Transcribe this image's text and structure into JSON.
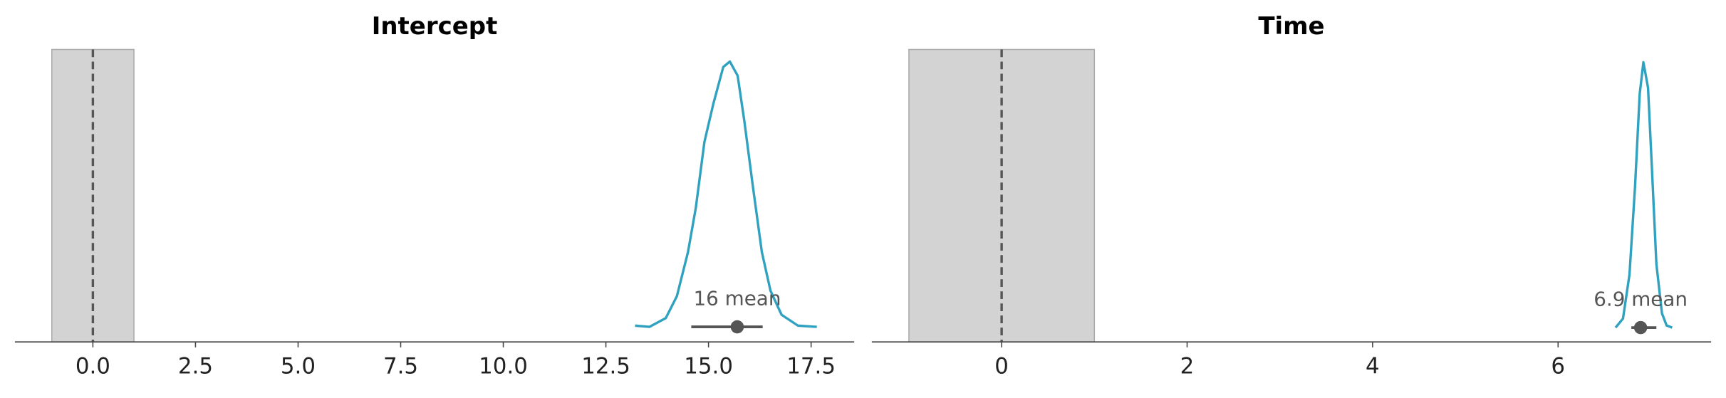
{
  "chart_data": [
    {
      "type": "density",
      "title": "Intercept",
      "x": [
        13.21,
        13.56,
        13.96,
        14.23,
        14.5,
        14.69,
        14.9,
        15.12,
        15.36,
        15.52,
        15.71,
        15.87,
        16.08,
        16.3,
        16.51,
        16.78,
        17.18,
        17.64
      ],
      "density": [
        0.004,
        0,
        0.029,
        0.102,
        0.248,
        0.394,
        0.613,
        0.741,
        0.862,
        0.88,
        0.833,
        0.686,
        0.467,
        0.248,
        0.12,
        0.04,
        0.004,
        0
      ],
      "color": "#30a2c0",
      "point_estimate": 15.7,
      "point_estimate_label": "16 mean",
      "hdi": [
        14.58,
        16.32
      ],
      "rope": [
        -1,
        1
      ],
      "rope_color": "#d3d3d3",
      "ref_val": 0,
      "xlim": [
        -1.9,
        18.55
      ],
      "ylim": [
        -0.05,
        0.92
      ],
      "xticks": [
        {
          "value": 0,
          "label": "0.0"
        },
        2.5,
        {
          "value": 5,
          "label": "5.0"
        },
        7.5,
        {
          "value": 10,
          "label": "10.0"
        },
        12.5,
        {
          "value": 15,
          "label": "15.0"
        },
        17.5
      ]
    },
    {
      "type": "density",
      "title": "Time",
      "x": [
        6.62,
        6.7,
        6.77,
        6.83,
        6.88,
        6.92,
        6.97,
        7.01,
        7.06,
        7.12,
        7.17,
        7.23
      ],
      "density": [
        0,
        0.17,
        1.0,
        2.66,
        4.4,
        5.0,
        4.52,
        3.07,
        1.2,
        0.27,
        0.04,
        0
      ],
      "color": "#30a2c0",
      "point_estimate": 6.89,
      "point_estimate_label": "6.9 mean",
      "hdi": [
        6.79,
        7.06
      ],
      "rope": [
        -1,
        1
      ],
      "rope_color": "#d3d3d3",
      "ref_val": 0,
      "xlim": [
        -1.4,
        7.65
      ],
      "ylim": [
        -0.27,
        5.24
      ],
      "xticks": [
        0,
        2,
        4,
        6
      ]
    }
  ]
}
